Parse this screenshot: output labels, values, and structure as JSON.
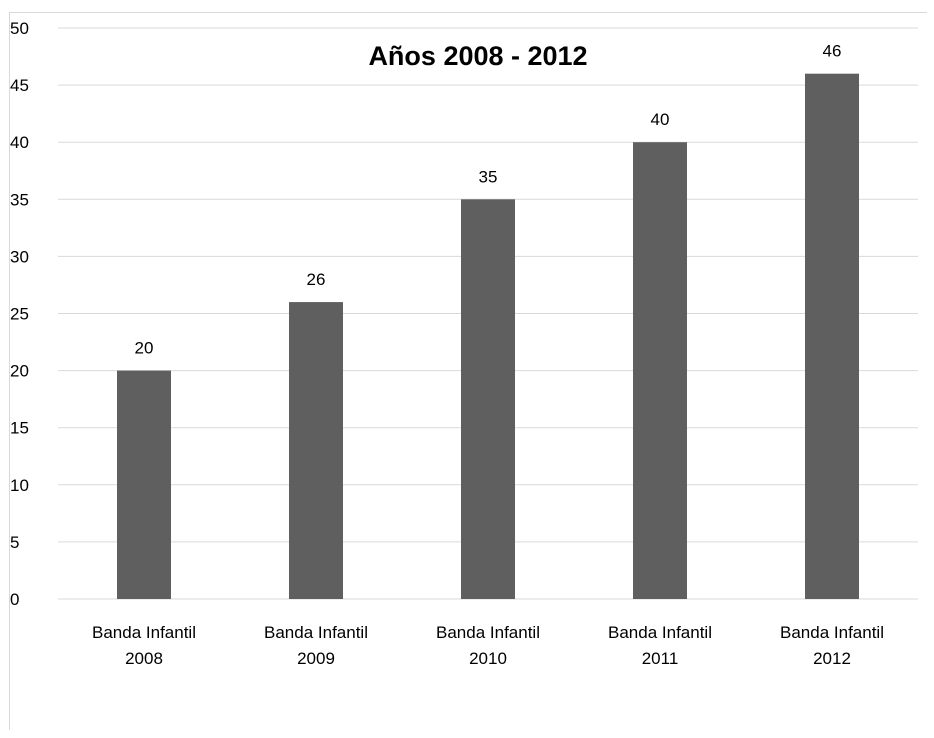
{
  "chart_data": {
    "type": "bar",
    "title": "Años 2008 - 2012",
    "categories": [
      [
        "Banda Infantil",
        "2008"
      ],
      [
        "Banda Infantil",
        "2009"
      ],
      [
        "Banda Infantil",
        "2010"
      ],
      [
        "Banda Infantil",
        "2011"
      ],
      [
        "Banda Infantil",
        "2012"
      ]
    ],
    "values": [
      20,
      26,
      35,
      40,
      46
    ],
    "data_labels": [
      "20",
      "26",
      "35",
      "40",
      "46"
    ],
    "y_ticks": [
      "0",
      "5",
      "10",
      "15",
      "20",
      "25",
      "30",
      "35",
      "40",
      "45",
      "50"
    ],
    "ylim": [
      0,
      50
    ],
    "grid": true,
    "bar_color": "#5f5f5f",
    "grid_color": "#d9d9d9"
  }
}
